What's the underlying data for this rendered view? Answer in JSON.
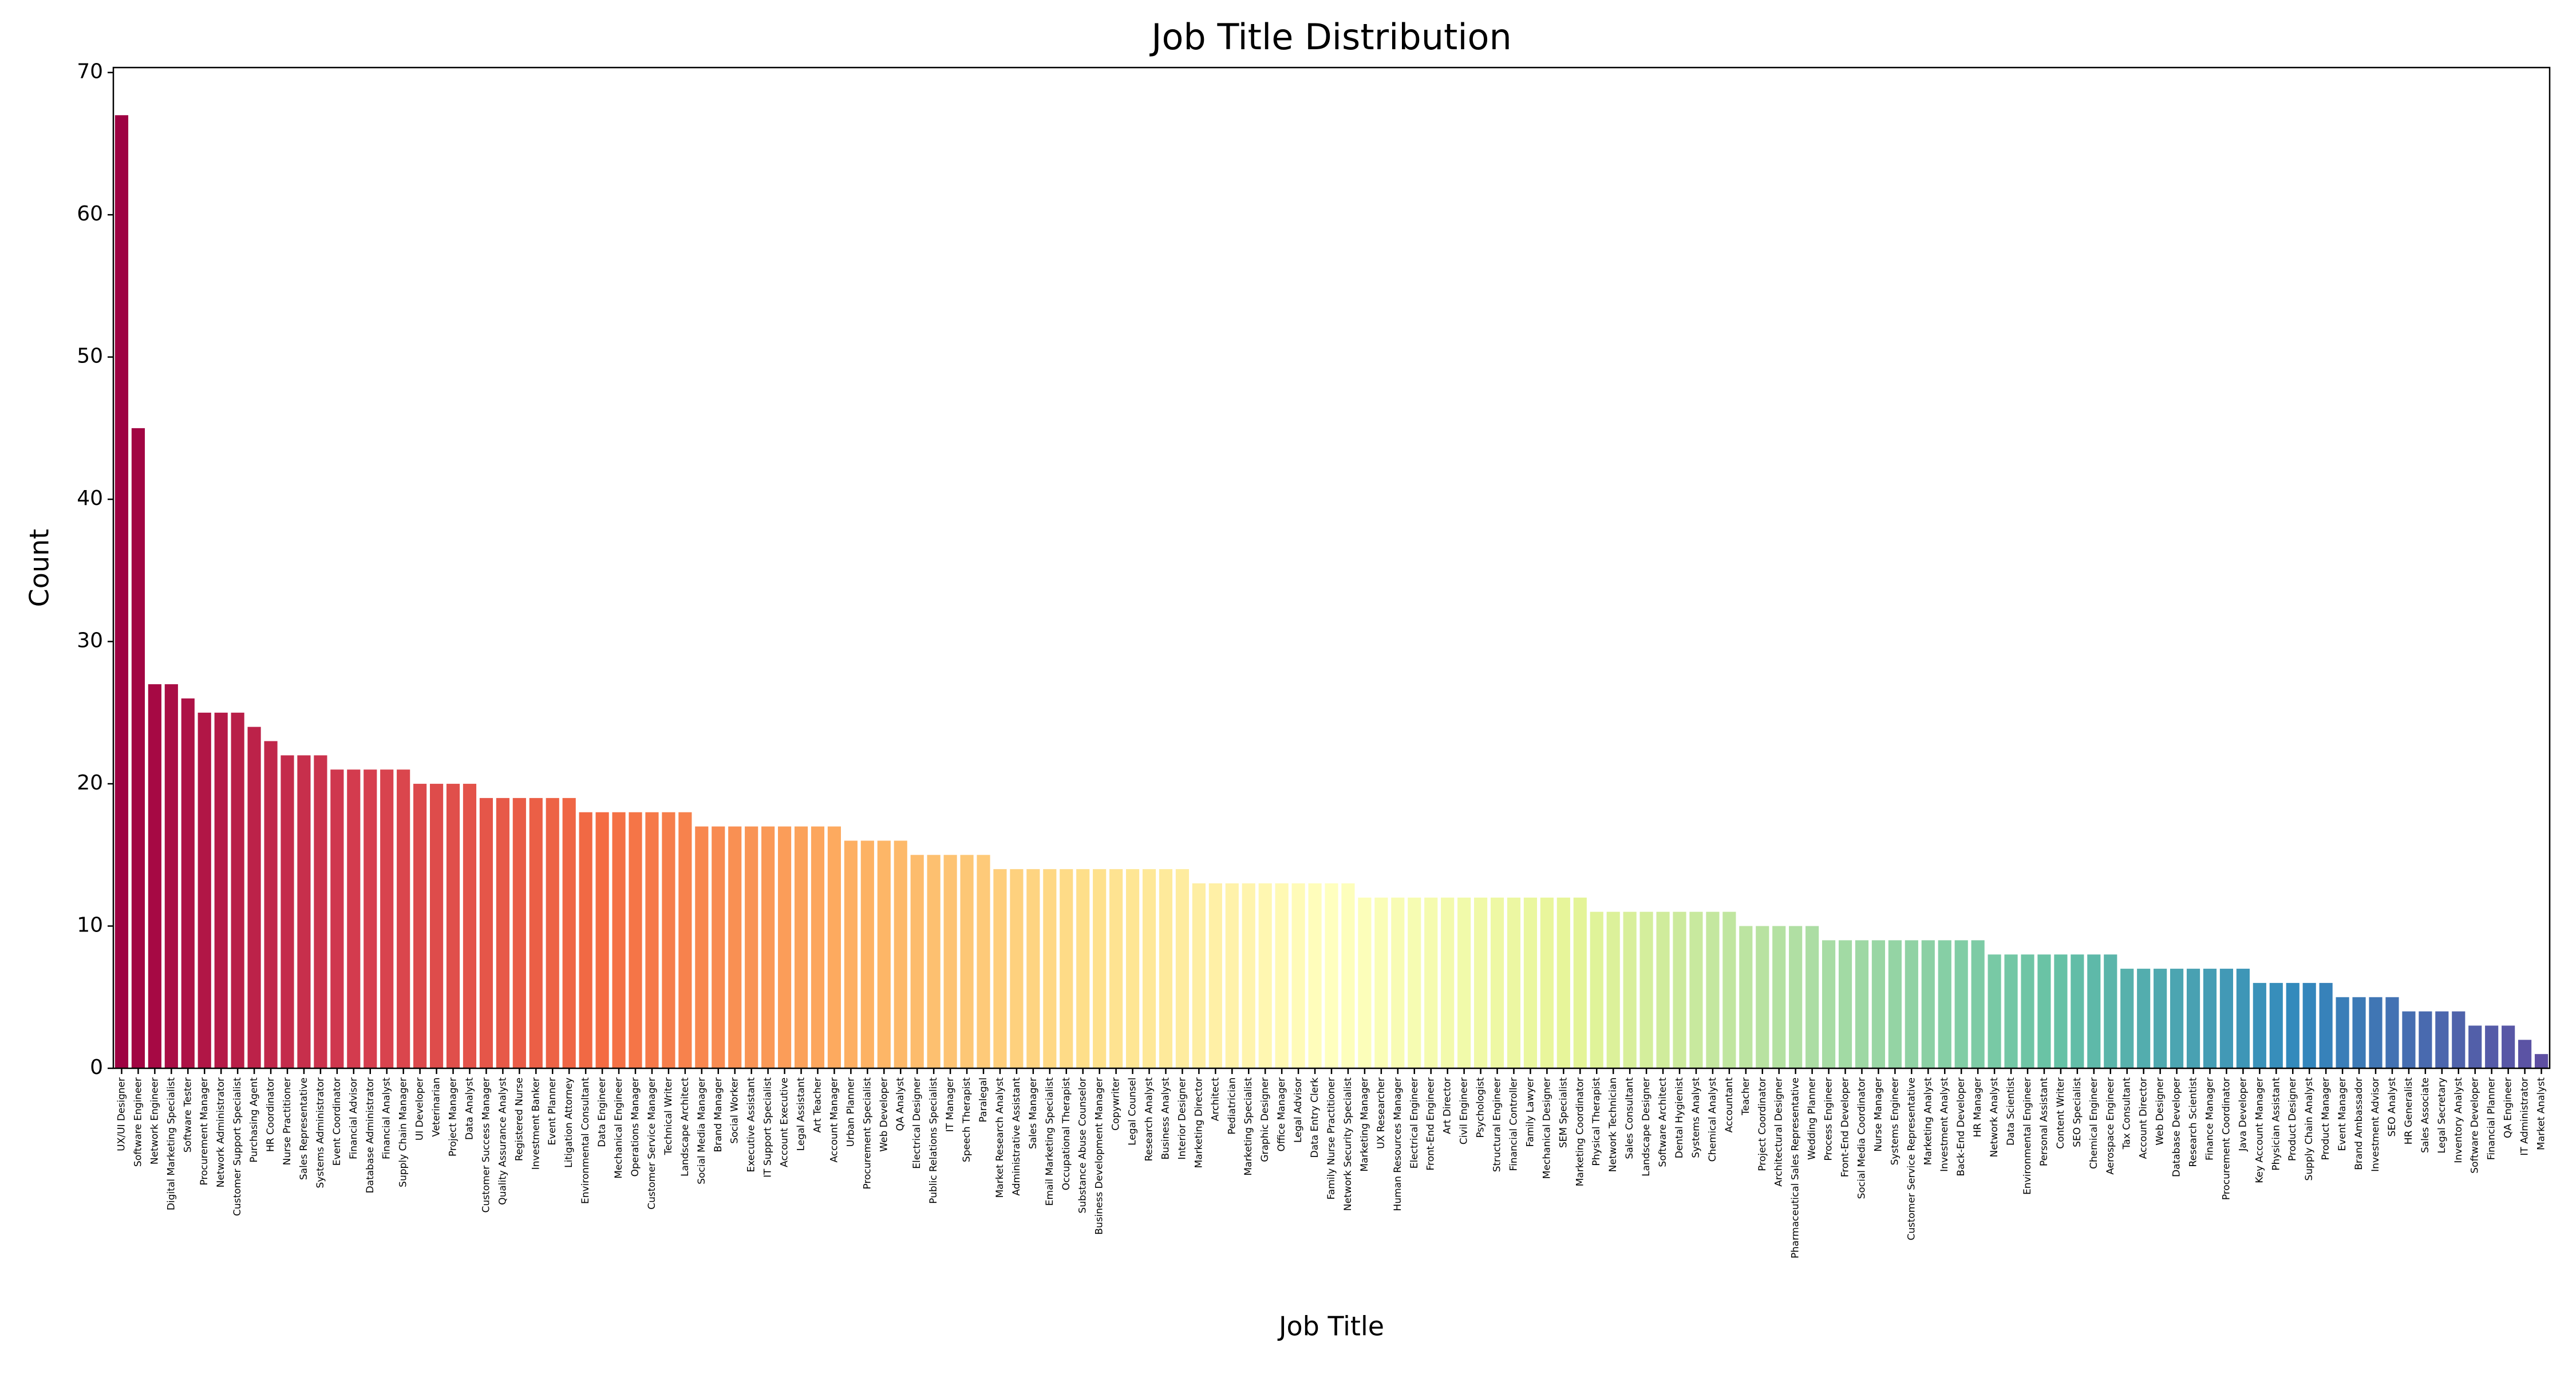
{
  "chart_data": {
    "type": "bar",
    "title": "Job Title Distribution",
    "x_label": "Job Title",
    "y_label": "Count",
    "categories": [
      "UX/UI Designer",
      "Software Engineer",
      "Network Engineer",
      "Digital Marketing Specialist",
      "Software Tester",
      "Procurement Manager",
      "Network Administrator",
      "Customer Support Specialist",
      "Purchasing Agent",
      "HR Coordinator",
      "Nurse Practitioner",
      "Sales Representative",
      "Systems Administrator",
      "Event Coordinator",
      "Financial Advisor",
      "Database Administrator",
      "Financial Analyst",
      "Supply Chain Manager",
      "UI Developer",
      "Veterinarian",
      "Project Manager",
      "Data Analyst",
      "Customer Success Manager",
      "Quality Assurance Analyst",
      "Registered Nurse",
      "Investment Banker",
      "Event Planner",
      "Litigation Attorney",
      "Environmental Consultant",
      "Data Engineer",
      "Mechanical Engineer",
      "Operations Manager",
      "Customer Service Manager",
      "Technical Writer",
      "Landscape Architect",
      "Social Media Manager",
      "Brand Manager",
      "Social Worker",
      "Executive Assistant",
      "IT Support Specialist",
      "Account Executive",
      "Legal Assistant",
      "Art Teacher",
      "Account Manager",
      "Urban Planner",
      "Procurement Specialist",
      "Web Developer",
      "QA Analyst",
      "Electrical Designer",
      "Public Relations Specialist",
      "IT Manager",
      "Speech Therapist",
      "Paralegal",
      "Market Research Analyst",
      "Administrative Assistant",
      "Sales Manager",
      "Email Marketing Specialist",
      "Occupational Therapist",
      "Substance Abuse Counselor",
      "Business Development Manager",
      "Copywriter",
      "Legal Counsel",
      "Research Analyst",
      "Business Analyst",
      "Interior Designer",
      "Marketing Director",
      "Architect",
      "Pediatrician",
      "Marketing Specialist",
      "Graphic Designer",
      "Office Manager",
      "Legal Advisor",
      "Data Entry Clerk",
      "Family Nurse Practitioner",
      "Network Security Specialist",
      "Marketing Manager",
      "UX Researcher",
      "Human Resources Manager",
      "Electrical Engineer",
      "Front-End Engineer",
      "Art Director",
      "Civil Engineer",
      "Psychologist",
      "Structural Engineer",
      "Financial Controller",
      "Family Lawyer",
      "Mechanical Designer",
      "SEM Specialist",
      "Marketing Coordinator",
      "Physical Therapist",
      "Network Technician",
      "Sales Consultant",
      "Landscape Designer",
      "Software Architect",
      "Dental Hygienist",
      "Systems Analyst",
      "Chemical Analyst",
      "Accountant",
      "Teacher",
      "Project Coordinator",
      "Architectural Designer",
      "Pharmaceutical Sales Representative",
      "Wedding Planner",
      "Process Engineer",
      "Front-End Developer",
      "Social Media Coordinator",
      "Nurse Manager",
      "Systems Engineer",
      "Customer Service Representative",
      "Marketing Analyst",
      "Investment Analyst",
      "Back-End Developer",
      "HR Manager",
      "Network Analyst",
      "Data Scientist",
      "Environmental Engineer",
      "Personal Assistant",
      "Content Writer",
      "SEO Specialist",
      "Chemical Engineer",
      "Aerospace Engineer",
      "Tax Consultant",
      "Account Director",
      "Web Designer",
      "Database Developer",
      "Research Scientist",
      "Finance Manager",
      "Procurement Coordinator",
      "Java Developer",
      "Key Account Manager",
      "Physician Assistant",
      "Product Designer",
      "Supply Chain Analyst",
      "Product Manager",
      "Event Manager",
      "Brand Ambassador",
      "Investment Advisor",
      "SEO Analyst",
      "HR Generalist",
      "Sales Associate",
      "Legal Secretary",
      "Inventory Analyst",
      "Software Developer",
      "Financial Planner",
      "QA Engineer",
      "IT Administrator",
      "Market Analyst"
    ],
    "values": [
      67,
      45,
      27,
      27,
      26,
      25,
      25,
      25,
      24,
      23,
      22,
      22,
      22,
      21,
      21,
      21,
      21,
      21,
      20,
      20,
      20,
      20,
      19,
      19,
      19,
      19,
      19,
      19,
      18,
      18,
      18,
      18,
      18,
      18,
      18,
      17,
      17,
      17,
      17,
      17,
      17,
      17,
      17,
      17,
      16,
      16,
      16,
      16,
      15,
      15,
      15,
      15,
      15,
      14,
      14,
      14,
      14,
      14,
      14,
      14,
      14,
      14,
      14,
      14,
      14,
      13,
      13,
      13,
      13,
      13,
      13,
      13,
      13,
      13,
      13,
      12,
      12,
      12,
      12,
      12,
      12,
      12,
      12,
      12,
      12,
      12,
      12,
      12,
      12,
      11,
      11,
      11,
      11,
      11,
      11,
      11,
      11,
      11,
      10,
      10,
      10,
      10,
      10,
      9,
      9,
      9,
      9,
      9,
      9,
      9,
      9,
      9,
      9,
      8,
      8,
      8,
      8,
      8,
      8,
      8,
      8,
      7,
      7,
      7,
      7,
      7,
      7,
      7,
      7,
      6,
      6,
      6,
      6,
      6,
      5,
      5,
      5,
      5,
      4,
      4,
      4,
      4,
      3,
      3,
      3,
      2,
      1
    ],
    "palette": [
      "#9e0142",
      "#d53e4f",
      "#f46d43",
      "#fdae61",
      "#fee08b",
      "#ffffbf",
      "#e6f598",
      "#abdda4",
      "#66c2a5",
      "#3288bd",
      "#5e4fa2"
    ],
    "ylim": [
      0,
      70.35
    ],
    "yticks": [
      0,
      10,
      20,
      30,
      40,
      50,
      60,
      70
    ],
    "grid": false
  }
}
